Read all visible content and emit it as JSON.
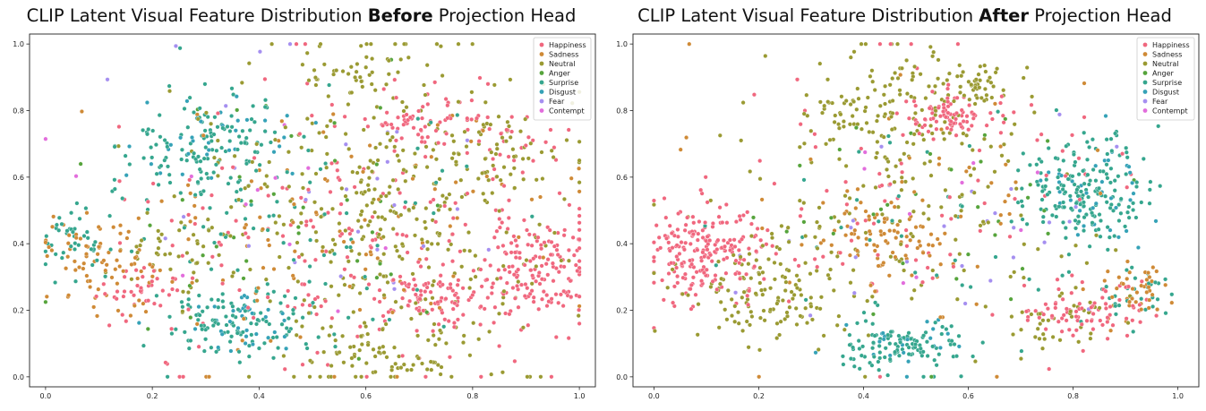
{
  "chart_data": [
    {
      "type": "scatter",
      "title_pre": "CLIP Latent Visual Feature Distribution ",
      "title_bold": "Before",
      "title_post": " Projection Head",
      "xlabel": "",
      "ylabel": "",
      "xlim": [
        -0.03,
        1.03
      ],
      "ylim": [
        -0.03,
        1.03
      ],
      "xticks": [
        0.0,
        0.2,
        0.4,
        0.6,
        0.8,
        1.0
      ],
      "yticks": [
        0.0,
        0.2,
        0.4,
        0.6,
        0.8,
        1.0
      ],
      "tick_labels": [
        "0.0",
        "0.2",
        "0.4",
        "0.6",
        "0.8",
        "1.0"
      ],
      "grid": false,
      "legend_position": "top-right",
      "seed": 11,
      "series": [
        {
          "name": "Happiness",
          "color": "#f0677e",
          "clusters": [
            {
              "x": [
                0.92,
                0.05
              ],
              "y": [
                0.32,
                0.08
              ],
              "n": 160
            },
            {
              "x": [
                0.73,
                0.05
              ],
              "y": [
                0.24,
                0.05
              ],
              "n": 90
            },
            {
              "x": [
                0.71,
                0.05
              ],
              "y": [
                0.76,
                0.04
              ],
              "n": 60
            },
            {
              "x": [
                0.55,
                0.2
              ],
              "y": [
                0.45,
                0.22
              ],
              "n": 180
            },
            {
              "x": [
                0.18,
                0.05
              ],
              "y": [
                0.26,
                0.05
              ],
              "n": 40
            },
            {
              "x": [
                0.88,
                0.05
              ],
              "y": [
                0.71,
                0.05
              ],
              "n": 30
            }
          ]
        },
        {
          "name": "Sadness",
          "color": "#cf8a36",
          "clusters": [
            {
              "x": [
                0.08,
                0.06
              ],
              "y": [
                0.38,
                0.06
              ],
              "n": 50
            },
            {
              "x": [
                0.15,
                0.05
              ],
              "y": [
                0.28,
                0.07
              ],
              "n": 30
            },
            {
              "x": [
                0.55,
                0.2
              ],
              "y": [
                0.45,
                0.2
              ],
              "n": 110
            }
          ]
        },
        {
          "name": "Neutral",
          "color": "#9a9a32",
          "clusters": [
            {
              "x": [
                0.62,
                0.18
              ],
              "y": [
                0.5,
                0.25
              ],
              "n": 380
            },
            {
              "x": [
                0.58,
                0.05
              ],
              "y": [
                0.93,
                0.04
              ],
              "n": 40
            },
            {
              "x": [
                0.85,
                0.05
              ],
              "y": [
                0.68,
                0.06
              ],
              "n": 40
            },
            {
              "x": [
                0.22,
                0.06
              ],
              "y": [
                0.36,
                0.06
              ],
              "n": 40
            },
            {
              "x": [
                0.63,
                0.08
              ],
              "y": [
                0.08,
                0.05
              ],
              "n": 60
            }
          ]
        },
        {
          "name": "Anger",
          "color": "#56a43c",
          "clusters": [
            {
              "x": [
                0.5,
                0.18
              ],
              "y": [
                0.5,
                0.22
              ],
              "n": 40
            }
          ]
        },
        {
          "name": "Surprise",
          "color": "#35a68e",
          "clusters": [
            {
              "x": [
                0.3,
                0.08
              ],
              "y": [
                0.68,
                0.09
              ],
              "n": 130
            },
            {
              "x": [
                0.37,
                0.07
              ],
              "y": [
                0.16,
                0.05
              ],
              "n": 110
            },
            {
              "x": [
                0.05,
                0.03
              ],
              "y": [
                0.42,
                0.05
              ],
              "n": 40
            },
            {
              "x": [
                0.4,
                0.18
              ],
              "y": [
                0.45,
                0.2
              ],
              "n": 80
            }
          ]
        },
        {
          "name": "Disgust",
          "color": "#35a2b7",
          "clusters": [
            {
              "x": [
                0.32,
                0.08
              ],
              "y": [
                0.72,
                0.08
              ],
              "n": 35
            },
            {
              "x": [
                0.37,
                0.06
              ],
              "y": [
                0.18,
                0.05
              ],
              "n": 35
            }
          ]
        },
        {
          "name": "Fear",
          "color": "#a58ff0",
          "clusters": [
            {
              "x": [
                0.5,
                0.18
              ],
              "y": [
                0.55,
                0.2
              ],
              "n": 30
            }
          ]
        },
        {
          "name": "Contempt",
          "color": "#e26ddc",
          "clusters": [
            {
              "x": [
                0.5,
                0.2
              ],
              "y": [
                0.5,
                0.2
              ],
              "n": 12
            }
          ]
        }
      ]
    },
    {
      "type": "scatter",
      "title_pre": "CLIP Latent Visual Feature Distribution ",
      "title_bold": "After",
      "title_post": " Projection Head",
      "xlabel": "",
      "ylabel": "",
      "xlim": [
        -0.04,
        1.04
      ],
      "ylim": [
        -0.03,
        1.03
      ],
      "xticks": [
        0.0,
        0.2,
        0.4,
        0.6,
        0.8,
        1.0
      ],
      "yticks": [
        0.0,
        0.2,
        0.4,
        0.6,
        0.8,
        1.0
      ],
      "tick_labels": [
        "0.0",
        "0.2",
        "0.4",
        "0.6",
        "0.8",
        "1.0"
      ],
      "grid": false,
      "legend_position": "top-right",
      "seed": 29,
      "series": [
        {
          "name": "Happiness",
          "color": "#f0677e",
          "clusters": [
            {
              "x": [
                0.1,
                0.06
              ],
              "y": [
                0.38,
                0.07
              ],
              "n": 210
            },
            {
              "x": [
                0.56,
                0.04
              ],
              "y": [
                0.79,
                0.03
              ],
              "n": 80
            },
            {
              "x": [
                0.83,
                0.06
              ],
              "y": [
                0.2,
                0.04
              ],
              "n": 80
            },
            {
              "x": [
                0.5,
                0.2
              ],
              "y": [
                0.55,
                0.22
              ],
              "n": 90
            }
          ]
        },
        {
          "name": "Sadness",
          "color": "#cf8a36",
          "clusters": [
            {
              "x": [
                0.44,
                0.05
              ],
              "y": [
                0.42,
                0.07
              ],
              "n": 80
            },
            {
              "x": [
                0.92,
                0.03
              ],
              "y": [
                0.26,
                0.05
              ],
              "n": 40
            },
            {
              "x": [
                0.5,
                0.2
              ],
              "y": [
                0.5,
                0.2
              ],
              "n": 50
            }
          ]
        },
        {
          "name": "Neutral",
          "color": "#9a9a32",
          "clusters": [
            {
              "x": [
                0.22,
                0.08
              ],
              "y": [
                0.24,
                0.07
              ],
              "n": 130
            },
            {
              "x": [
                0.45,
                0.1
              ],
              "y": [
                0.8,
                0.1
              ],
              "n": 140
            },
            {
              "x": [
                0.62,
                0.04
              ],
              "y": [
                0.88,
                0.04
              ],
              "n": 50
            },
            {
              "x": [
                0.5,
                0.18
              ],
              "y": [
                0.5,
                0.18
              ],
              "n": 120
            },
            {
              "x": [
                0.78,
                0.06
              ],
              "y": [
                0.15,
                0.04
              ],
              "n": 40
            }
          ]
        },
        {
          "name": "Anger",
          "color": "#56a43c",
          "clusters": [
            {
              "x": [
                0.5,
                0.18
              ],
              "y": [
                0.5,
                0.18
              ],
              "n": 35
            }
          ]
        },
        {
          "name": "Surprise",
          "color": "#35a68e",
          "clusters": [
            {
              "x": [
                0.82,
                0.06
              ],
              "y": [
                0.55,
                0.09
              ],
              "n": 180
            },
            {
              "x": [
                0.48,
                0.06
              ],
              "y": [
                0.09,
                0.04
              ],
              "n": 110
            },
            {
              "x": [
                0.93,
                0.04
              ],
              "y": [
                0.25,
                0.04
              ],
              "n": 30
            },
            {
              "x": [
                0.5,
                0.18
              ],
              "y": [
                0.45,
                0.18
              ],
              "n": 40
            }
          ]
        },
        {
          "name": "Disgust",
          "color": "#35a2b7",
          "clusters": [
            {
              "x": [
                0.83,
                0.06
              ],
              "y": [
                0.56,
                0.08
              ],
              "n": 40
            },
            {
              "x": [
                0.47,
                0.06
              ],
              "y": [
                0.09,
                0.04
              ],
              "n": 25
            }
          ]
        },
        {
          "name": "Fear",
          "color": "#a58ff0",
          "clusters": [
            {
              "x": [
                0.5,
                0.2
              ],
              "y": [
                0.5,
                0.2
              ],
              "n": 28
            }
          ]
        },
        {
          "name": "Contempt",
          "color": "#e26ddc",
          "clusters": [
            {
              "x": [
                0.5,
                0.2
              ],
              "y": [
                0.5,
                0.2
              ],
              "n": 10
            }
          ]
        }
      ]
    }
  ]
}
